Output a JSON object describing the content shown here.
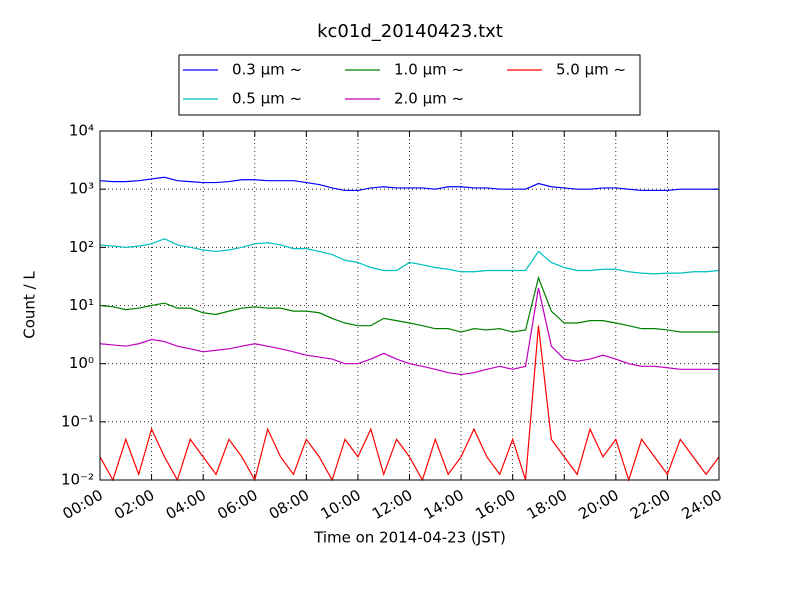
{
  "chart_data": {
    "type": "line",
    "title": "kc01d_20140423.txt",
    "x_label": "Time on 2014-04-23 (JST)",
    "y_label": "Count / L",
    "log_y": true,
    "grid": true,
    "legend_position": "top",
    "x": [
      0,
      0.5,
      1,
      1.5,
      2,
      2.5,
      3,
      3.5,
      4,
      4.5,
      5,
      5.5,
      6,
      6.5,
      7,
      7.5,
      8,
      8.5,
      9,
      9.5,
      10,
      10.5,
      11,
      11.5,
      12,
      12.5,
      13,
      13.5,
      14,
      14.5,
      15,
      15.5,
      16,
      16.5,
      17,
      17.5,
      18,
      18.5,
      19,
      19.5,
      20,
      20.5,
      21,
      21.5,
      22,
      22.5,
      23,
      23.5,
      24
    ],
    "xlim": [
      0,
      24
    ],
    "xticks": [
      {
        "value": 0,
        "label": "00:00"
      },
      {
        "value": 2,
        "label": "02:00"
      },
      {
        "value": 4,
        "label": "04:00"
      },
      {
        "value": 6,
        "label": "06:00"
      },
      {
        "value": 8,
        "label": "08:00"
      },
      {
        "value": 10,
        "label": "10:00"
      },
      {
        "value": 12,
        "label": "12:00"
      },
      {
        "value": 14,
        "label": "14:00"
      },
      {
        "value": 16,
        "label": "16:00"
      },
      {
        "value": 18,
        "label": "18:00"
      },
      {
        "value": 20,
        "label": "20:00"
      },
      {
        "value": 22,
        "label": "22:00"
      },
      {
        "value": 24,
        "label": "24:00"
      }
    ],
    "ylim": [
      0.01,
      10000
    ],
    "yticks": [
      {
        "value": 0.01,
        "label": "10⁻²"
      },
      {
        "value": 0.1,
        "label": "10⁻¹"
      },
      {
        "value": 1,
        "label": "10⁰"
      },
      {
        "value": 10,
        "label": "10¹"
      },
      {
        "value": 100,
        "label": "10²"
      },
      {
        "value": 1000,
        "label": "10³"
      },
      {
        "value": 10000,
        "label": "10⁴"
      }
    ],
    "series": [
      {
        "name": "0.3 μm ~",
        "color": "#0000ff",
        "values": [
          1400,
          1350,
          1350,
          1400,
          1500,
          1600,
          1400,
          1350,
          1300,
          1300,
          1350,
          1450,
          1450,
          1400,
          1400,
          1400,
          1300,
          1200,
          1050,
          950,
          950,
          1050,
          1100,
          1050,
          1050,
          1050,
          1000,
          1100,
          1100,
          1050,
          1050,
          1000,
          1000,
          1000,
          1250,
          1100,
          1050,
          1000,
          1000,
          1050,
          1050,
          1000,
          950,
          950,
          950,
          1000,
          1000,
          1000,
          1000
        ]
      },
      {
        "name": "0.5 μm ~",
        "color": "#00bfbf",
        "values": [
          110,
          105,
          100,
          105,
          115,
          140,
          110,
          100,
          90,
          85,
          90,
          100,
          115,
          120,
          110,
          95,
          95,
          85,
          75,
          60,
          55,
          45,
          40,
          40,
          55,
          50,
          45,
          42,
          38,
          38,
          40,
          40,
          40,
          40,
          85,
          55,
          45,
          40,
          40,
          42,
          42,
          38,
          36,
          35,
          36,
          36,
          38,
          38,
          40
        ]
      },
      {
        "name": "1.0 μm ~",
        "color": "#008000",
        "values": [
          10,
          9.5,
          8.5,
          9,
          10,
          11,
          9,
          9,
          7.5,
          7,
          8,
          9,
          9.5,
          9,
          9,
          8,
          8,
          7.5,
          6,
          5,
          4.5,
          4.5,
          6,
          5.5,
          5,
          4.5,
          4,
          4,
          3.5,
          4,
          3.8,
          4,
          3.5,
          3.8,
          30,
          8,
          5,
          5,
          5.5,
          5.5,
          5,
          4.5,
          4,
          4,
          3.8,
          3.5,
          3.5,
          3.5,
          3.5
        ]
      },
      {
        "name": "2.0 μm ~",
        "color": "#bf00bf",
        "values": [
          2.2,
          2.1,
          2,
          2.2,
          2.6,
          2.4,
          2,
          1.8,
          1.6,
          1.7,
          1.8,
          2,
          2.2,
          2,
          1.8,
          1.6,
          1.4,
          1.3,
          1.2,
          1,
          1,
          1.2,
          1.5,
          1.2,
          1,
          0.9,
          0.8,
          0.7,
          0.65,
          0.7,
          0.8,
          0.9,
          0.8,
          0.9,
          20,
          2,
          1.2,
          1.1,
          1.2,
          1.4,
          1.2,
          1,
          0.9,
          0.9,
          0.85,
          0.8,
          0.8,
          0.8,
          0.8
        ]
      },
      {
        "name": "5.0 μm ~",
        "color": "#ff0000",
        "values": [
          0.025,
          0.01,
          0.05,
          0.0125,
          0.075,
          0.025,
          0.01,
          0.05,
          0.025,
          0.0125,
          0.05,
          0.025,
          0.01,
          0.075,
          0.025,
          0.0125,
          0.05,
          0.025,
          0.01,
          0.05,
          0.025,
          0.075,
          0.0125,
          0.05,
          0.025,
          0.01,
          0.05,
          0.0125,
          0.025,
          0.075,
          0.025,
          0.0125,
          0.05,
          0.01,
          4.5,
          0.05,
          0.025,
          0.0125,
          0.075,
          0.025,
          0.05,
          0.01,
          0.05,
          0.025,
          0.0125,
          0.05,
          0.025,
          0.0125,
          0.025
        ]
      }
    ]
  }
}
